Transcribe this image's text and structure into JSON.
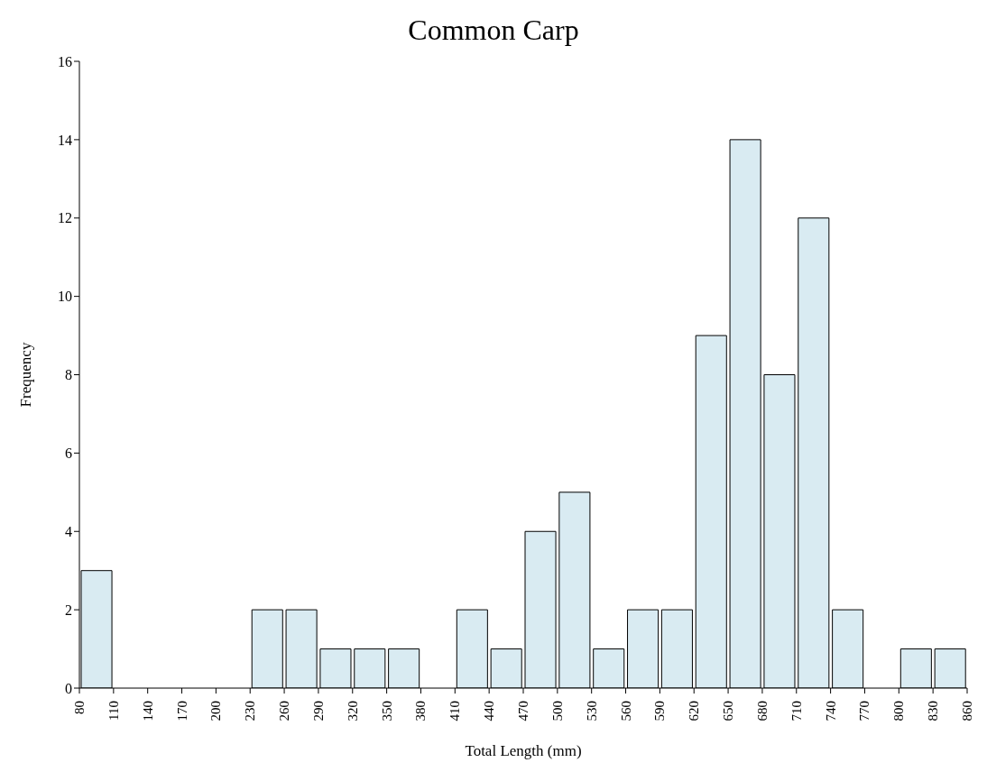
{
  "chart_data": {
    "type": "histogram",
    "title": "Common Carp",
    "xlabel": "Total Length (mm)",
    "ylabel": "Frequency",
    "bins": [
      80,
      110,
      140,
      170,
      200,
      230,
      260,
      290,
      320,
      350,
      380,
      410,
      440,
      470,
      500,
      530,
      560,
      590,
      620,
      650,
      680,
      710,
      740,
      770,
      800,
      830,
      860
    ],
    "values": [
      3,
      0,
      0,
      0,
      0,
      2,
      2,
      1,
      1,
      1,
      0,
      2,
      1,
      4,
      5,
      1,
      2,
      2,
      9,
      14,
      8,
      12,
      2,
      0,
      1,
      1
    ],
    "color": "#d9ebf2",
    "xlim": [
      80,
      860
    ],
    "xticks": [
      80,
      110,
      140,
      170,
      200,
      230,
      260,
      290,
      320,
      350,
      380,
      410,
      440,
      470,
      500,
      530,
      560,
      590,
      620,
      650,
      680,
      710,
      740,
      770,
      800,
      830,
      860
    ],
    "ylim": [
      0,
      16
    ],
    "yticks": [
      0,
      2,
      4,
      6,
      8,
      10,
      12,
      14,
      16
    ]
  }
}
